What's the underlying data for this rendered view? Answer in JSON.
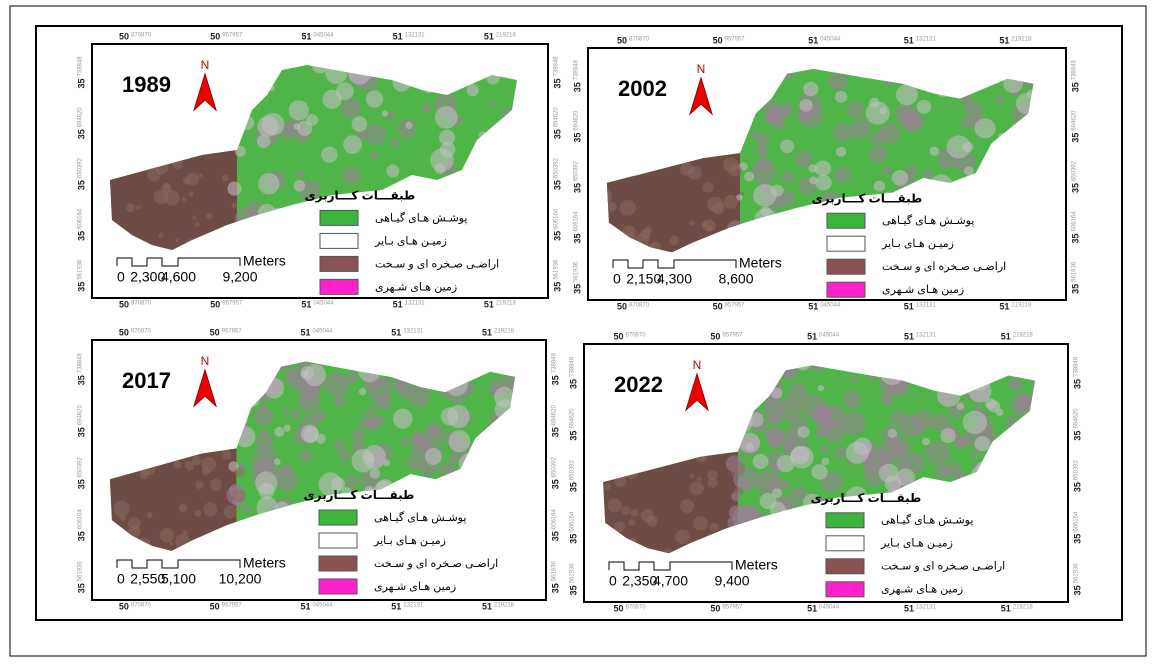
{
  "panels": [
    {
      "year": "1989",
      "north": "N",
      "scale_labels": [
        "0",
        "2,300",
        "4,600",
        "9,200"
      ],
      "scale_unit": "Meters"
    },
    {
      "year": "2002",
      "north": "N",
      "scale_labels": [
        "0",
        "2,150",
        "4,300",
        "8,600"
      ],
      "scale_unit": "Meters"
    },
    {
      "year": "2017",
      "north": "N",
      "scale_labels": [
        "0",
        "2,550",
        "5,100",
        "10,200"
      ],
      "scale_unit": "Meters"
    },
    {
      "year": "2022",
      "north": "N",
      "scale_labels": [
        "0",
        "2,350",
        "4,700",
        "9,400"
      ],
      "scale_unit": "Meters"
    }
  ],
  "legend": {
    "title": "طبقـــات کـــاربری",
    "items": [
      {
        "label": "پوشـش هـای گیـاهی",
        "color": "#3cb53c"
      },
      {
        "label": "زمیـن هـای بـایر",
        "color": "#ffffff"
      },
      {
        "label": "اراضـی صـخره ای و سـخت",
        "color": "#8a5252"
      },
      {
        "label": "زمین هـای شـهری",
        "color": "#ff22cc"
      }
    ]
  },
  "lon_ticks": [
    {
      "deg": "50",
      "min": "870870"
    },
    {
      "deg": "50",
      "min": "957957"
    },
    {
      "deg": "51",
      "min": "045044"
    },
    {
      "deg": "51",
      "min": "132131"
    },
    {
      "deg": "51",
      "min": "219218"
    }
  ],
  "lat_ticks": [
    {
      "deg": "35",
      "min": "738848"
    },
    {
      "deg": "35",
      "min": "694620"
    },
    {
      "deg": "35",
      "min": "650392"
    },
    {
      "deg": "35",
      "min": "606164"
    },
    {
      "deg": "35",
      "min": "561936"
    }
  ]
}
